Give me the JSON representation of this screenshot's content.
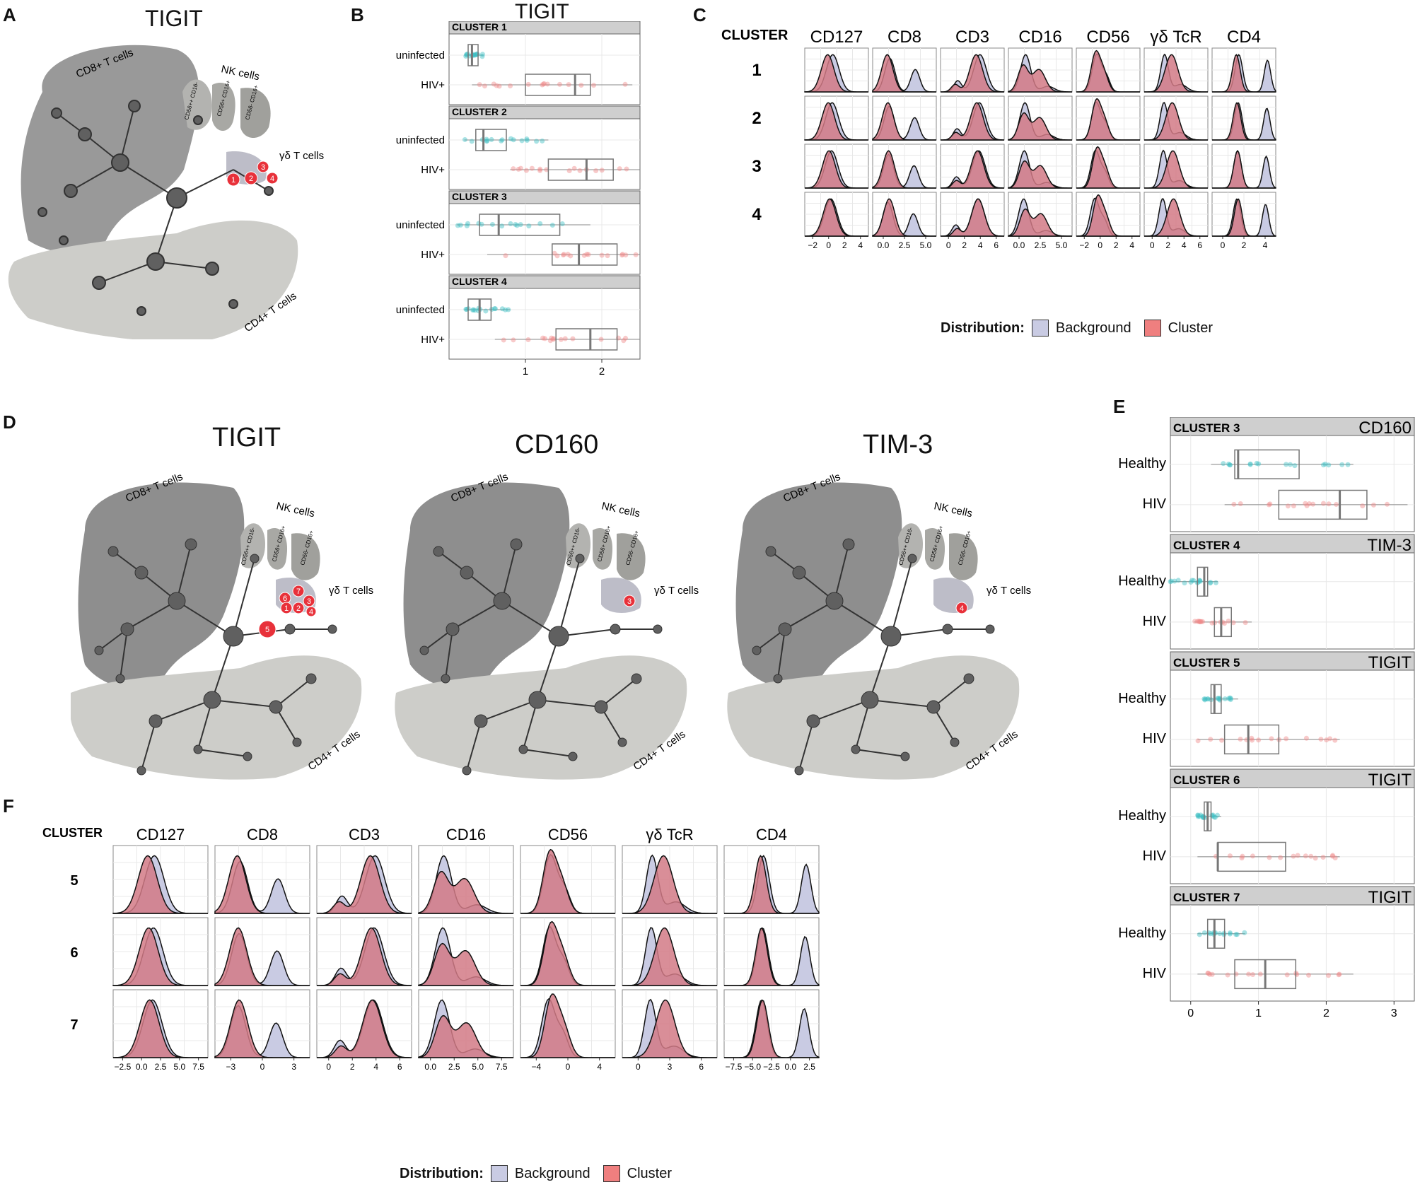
{
  "panels": {
    "A": {
      "letter": "A",
      "title": "TIGIT",
      "labels": {
        "cd8": "CD8+ T cells",
        "nk": "NK cells",
        "gd": "γδ T cells",
        "cd4": "CD4+ T cells",
        "nk1": "CD56++ CD16-",
        "nk2": "CD56+ CD16+",
        "nk3": "CD56- CD16+"
      },
      "clusters": [
        "1",
        "2",
        "3",
        "4"
      ]
    },
    "B": {
      "letter": "B",
      "title": "TIGIT",
      "groups": [
        "uninfected",
        "HIV+"
      ],
      "strips": [
        "CLUSTER 1",
        "CLUSTER 2",
        "CLUSTER 3",
        "CLUSTER 4"
      ],
      "ticks": [
        "1",
        "2"
      ]
    },
    "C": {
      "letter": "C",
      "cluster_header": "CLUSTER",
      "markers": [
        "CD127",
        "CD8",
        "CD3",
        "CD16",
        "CD56",
        "γδ TcR",
        "CD4"
      ],
      "rows": [
        "1",
        "2",
        "3",
        "4"
      ],
      "xticks": [
        [
          "−2",
          "0",
          "2",
          "4"
        ],
        [
          "0.0",
          "2.5",
          "5.0"
        ],
        [
          "0",
          "2",
          "4",
          "6"
        ],
        [
          "0.0",
          "2.5",
          "5.0"
        ],
        [
          "−2",
          "0",
          "2",
          "4"
        ],
        [
          "0",
          "2",
          "4",
          "6"
        ],
        [
          "0",
          "2",
          "4"
        ]
      ],
      "legend": {
        "title": "Distribution:",
        "background": "Background",
        "cluster": "Cluster"
      }
    },
    "D": {
      "letter": "D",
      "titles": [
        "TIGIT",
        "CD160",
        "TIM-3"
      ],
      "labels": {
        "cd8": "CD8+ T cells",
        "nk": "NK cells",
        "gd": "γδ T cells",
        "cd4": "CD4+ T cells",
        "nk1": "CD56++ CD16-",
        "nk2": "CD56+ CD16+",
        "nk3": "CD56- CD16+"
      },
      "tigit_clusters": [
        "5",
        "6",
        "7",
        "3",
        "1",
        "2",
        "4"
      ],
      "cd160_cluster": "3",
      "tim3_cluster": "4"
    },
    "E": {
      "letter": "E",
      "groups": [
        "Healthy",
        "HIV"
      ],
      "strips": [
        {
          "cluster": "CLUSTER 3",
          "marker": "CD160"
        },
        {
          "cluster": "CLUSTER 4",
          "marker": "TIM-3"
        },
        {
          "cluster": "CLUSTER 5",
          "marker": "TIGIT"
        },
        {
          "cluster": "CLUSTER 6",
          "marker": "TIGIT"
        },
        {
          "cluster": "CLUSTER 7",
          "marker": "TIGIT"
        }
      ],
      "ticks": [
        "0",
        "1",
        "2",
        "3"
      ]
    },
    "F": {
      "letter": "F",
      "cluster_header": "CLUSTER",
      "markers": [
        "CD127",
        "CD8",
        "CD3",
        "CD16",
        "CD56",
        "γδ TcR",
        "CD4"
      ],
      "rows": [
        "5",
        "6",
        "7"
      ],
      "xticks": [
        [
          "−2.5",
          "0.0",
          "2.5",
          "5.0",
          "7.5"
        ],
        [
          "−3",
          "0",
          "3"
        ],
        [
          "0",
          "2",
          "4",
          "6"
        ],
        [
          "0.0",
          "2.5",
          "5.0",
          "7.5"
        ],
        [
          "−4",
          "0",
          "4"
        ],
        [
          "0",
          "3",
          "6"
        ],
        [
          "−7.5",
          "−5.0",
          "−2.5",
          "0.0",
          "2.5"
        ]
      ],
      "legend": {
        "title": "Distribution:",
        "background": "Background",
        "cluster": "Cluster"
      }
    }
  },
  "colors": {
    "bg_fill": "#c9cbe3",
    "cluster_fill": "#d27a86",
    "teal": "#3fbfc4",
    "pink": "#ef8a8a",
    "red_node": "#e8313a",
    "cd8_region": "#8e8e8e",
    "cd4_region": "#cdcdc9",
    "node": "#606060"
  },
  "chart_data": [
    {
      "type": "box",
      "panel": "B",
      "title": "TIGIT",
      "xlim": [
        0,
        2.5
      ],
      "series": [
        {
          "name": "CLUSTER 1",
          "uninfected": {
            "q1": 0.25,
            "med": 0.3,
            "q3": 0.38,
            "min": 0.2,
            "max": 0.45
          },
          "HIV+": {
            "q1": 1.0,
            "med": 1.65,
            "q3": 1.85,
            "min": 0.3,
            "max": 2.4
          }
        },
        {
          "name": "CLUSTER 2",
          "uninfected": {
            "q1": 0.35,
            "med": 0.45,
            "q3": 0.75,
            "min": 0.2,
            "max": 1.3
          },
          "HIV+": {
            "q1": 1.3,
            "med": 1.8,
            "q3": 2.15,
            "min": 0.8,
            "max": 2.5
          }
        },
        {
          "name": "CLUSTER 3",
          "uninfected": {
            "q1": 0.4,
            "med": 0.65,
            "q3": 1.45,
            "min": 0.1,
            "max": 1.85
          },
          "HIV+": {
            "q1": 1.35,
            "med": 1.7,
            "q3": 2.2,
            "min": 0.5,
            "max": 2.5
          }
        },
        {
          "name": "CLUSTER 4",
          "uninfected": {
            "q1": 0.25,
            "med": 0.4,
            "q3": 0.55,
            "min": 0.2,
            "max": 0.8
          },
          "HIV+": {
            "q1": 1.4,
            "med": 1.85,
            "q3": 2.2,
            "min": 0.6,
            "max": 2.5
          }
        }
      ]
    },
    {
      "type": "box",
      "panel": "E",
      "xlim": [
        -0.3,
        3.3
      ],
      "series": [
        {
          "name": "CLUSTER 3 CD160",
          "Healthy": {
            "q1": 0.65,
            "med": 0.7,
            "q3": 1.6,
            "min": 0.3,
            "max": 2.4
          },
          "HIV": {
            "q1": 1.3,
            "med": 2.2,
            "q3": 2.6,
            "min": 0.5,
            "max": 3.2
          }
        },
        {
          "name": "CLUSTER 4 TIM-3",
          "Healthy": {
            "q1": 0.1,
            "med": 0.2,
            "q3": 0.25,
            "min": -0.3,
            "max": 0.4
          },
          "HIV": {
            "q1": 0.35,
            "med": 0.45,
            "q3": 0.6,
            "min": 0.05,
            "max": 0.9
          }
        },
        {
          "name": "CLUSTER 5 TIGIT",
          "Healthy": {
            "q1": 0.3,
            "med": 0.35,
            "q3": 0.45,
            "min": 0.2,
            "max": 0.7
          },
          "HIV": {
            "q1": 0.5,
            "med": 0.85,
            "q3": 1.3,
            "min": 0.1,
            "max": 2.2
          }
        },
        {
          "name": "CLUSTER 6 TIGIT",
          "Healthy": {
            "q1": 0.2,
            "med": 0.25,
            "q3": 0.3,
            "min": 0.1,
            "max": 0.45
          },
          "HIV": {
            "q1": 0.4,
            "med": 0.4,
            "q3": 1.4,
            "min": 0.1,
            "max": 2.2
          }
        },
        {
          "name": "CLUSTER 7 TIGIT",
          "Healthy": {
            "q1": 0.25,
            "med": 0.35,
            "q3": 0.5,
            "min": 0.1,
            "max": 0.8
          },
          "HIV": {
            "q1": 0.65,
            "med": 1.1,
            "q3": 1.55,
            "min": 0.1,
            "max": 2.4
          }
        }
      ]
    },
    {
      "type": "area",
      "panel": "C",
      "description": "density ridge grid: Background vs Cluster per marker"
    },
    {
      "type": "area",
      "panel": "F",
      "description": "density ridge grid: Background vs Cluster per marker"
    }
  ]
}
